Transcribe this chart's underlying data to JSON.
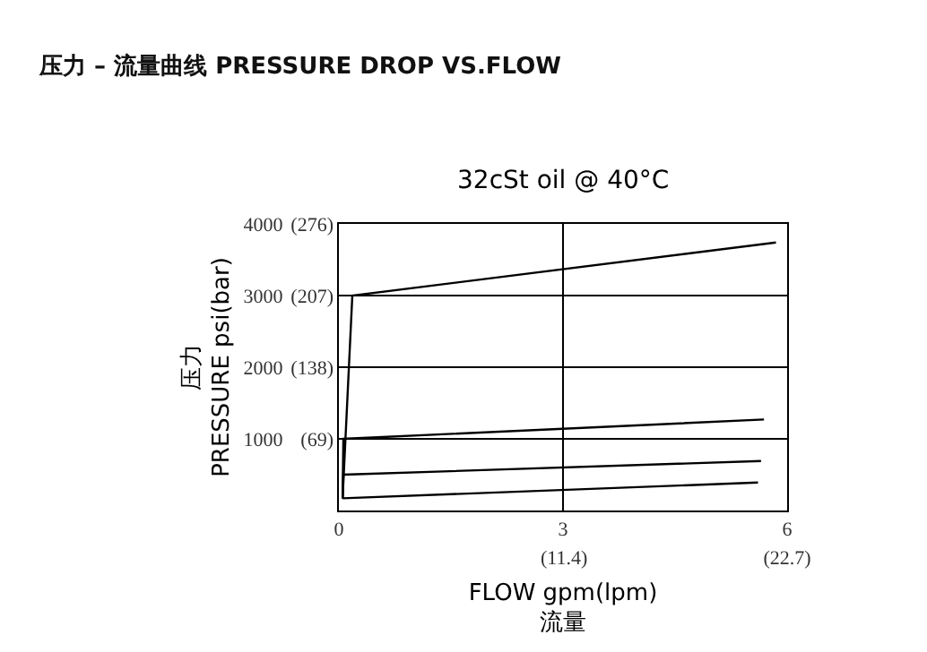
{
  "chart_data": {
    "type": "line",
    "title": "压力 – 流量曲线 PRESSURE DROP VS.FLOW",
    "subtitle": "32cSt oil @ 40°C",
    "xlabel": "FLOW gpm(lpm)\n流量",
    "ylabel": "压力\nPRESSURE psi(bar)",
    "series": [
      {
        "color": "#000000",
        "x": [
          0.05,
          0.18,
          5.85
        ],
        "values": [
          170,
          3000,
          3740
        ]
      },
      {
        "color": "#000000",
        "x": [
          0.05,
          0.06,
          5.69
        ],
        "values": [
          170,
          1000,
          1270
        ]
      },
      {
        "color": "#000000",
        "x": [
          0.05,
          0.06,
          5.65
        ],
        "values": [
          170,
          500,
          690
        ]
      },
      {
        "color": "#000000",
        "x": [
          0.05,
          5.61
        ],
        "values": [
          170,
          390
        ]
      }
    ],
    "xlim": [
      0,
      6
    ],
    "ylim": [
      0,
      4000
    ],
    "xticks": [
      0,
      3,
      6
    ],
    "x2lim": [
      0,
      22.7
    ],
    "x2ticks": [
      {
        "value": 11.4,
        "label": "(11.4)"
      },
      {
        "value": 22.7,
        "label": "(22.7)"
      }
    ],
    "yticks": [
      1000,
      2000,
      3000,
      4000
    ],
    "y2lim": [
      0,
      276
    ],
    "y2ticks": [
      {
        "value": 69,
        "label": "(69)"
      },
      {
        "value": 138,
        "label": "(138)"
      },
      {
        "value": 207,
        "label": "(207)"
      },
      {
        "value": 276,
        "label": "(276)"
      }
    ],
    "grid": true,
    "marker": "none",
    "line_style": "solid"
  }
}
